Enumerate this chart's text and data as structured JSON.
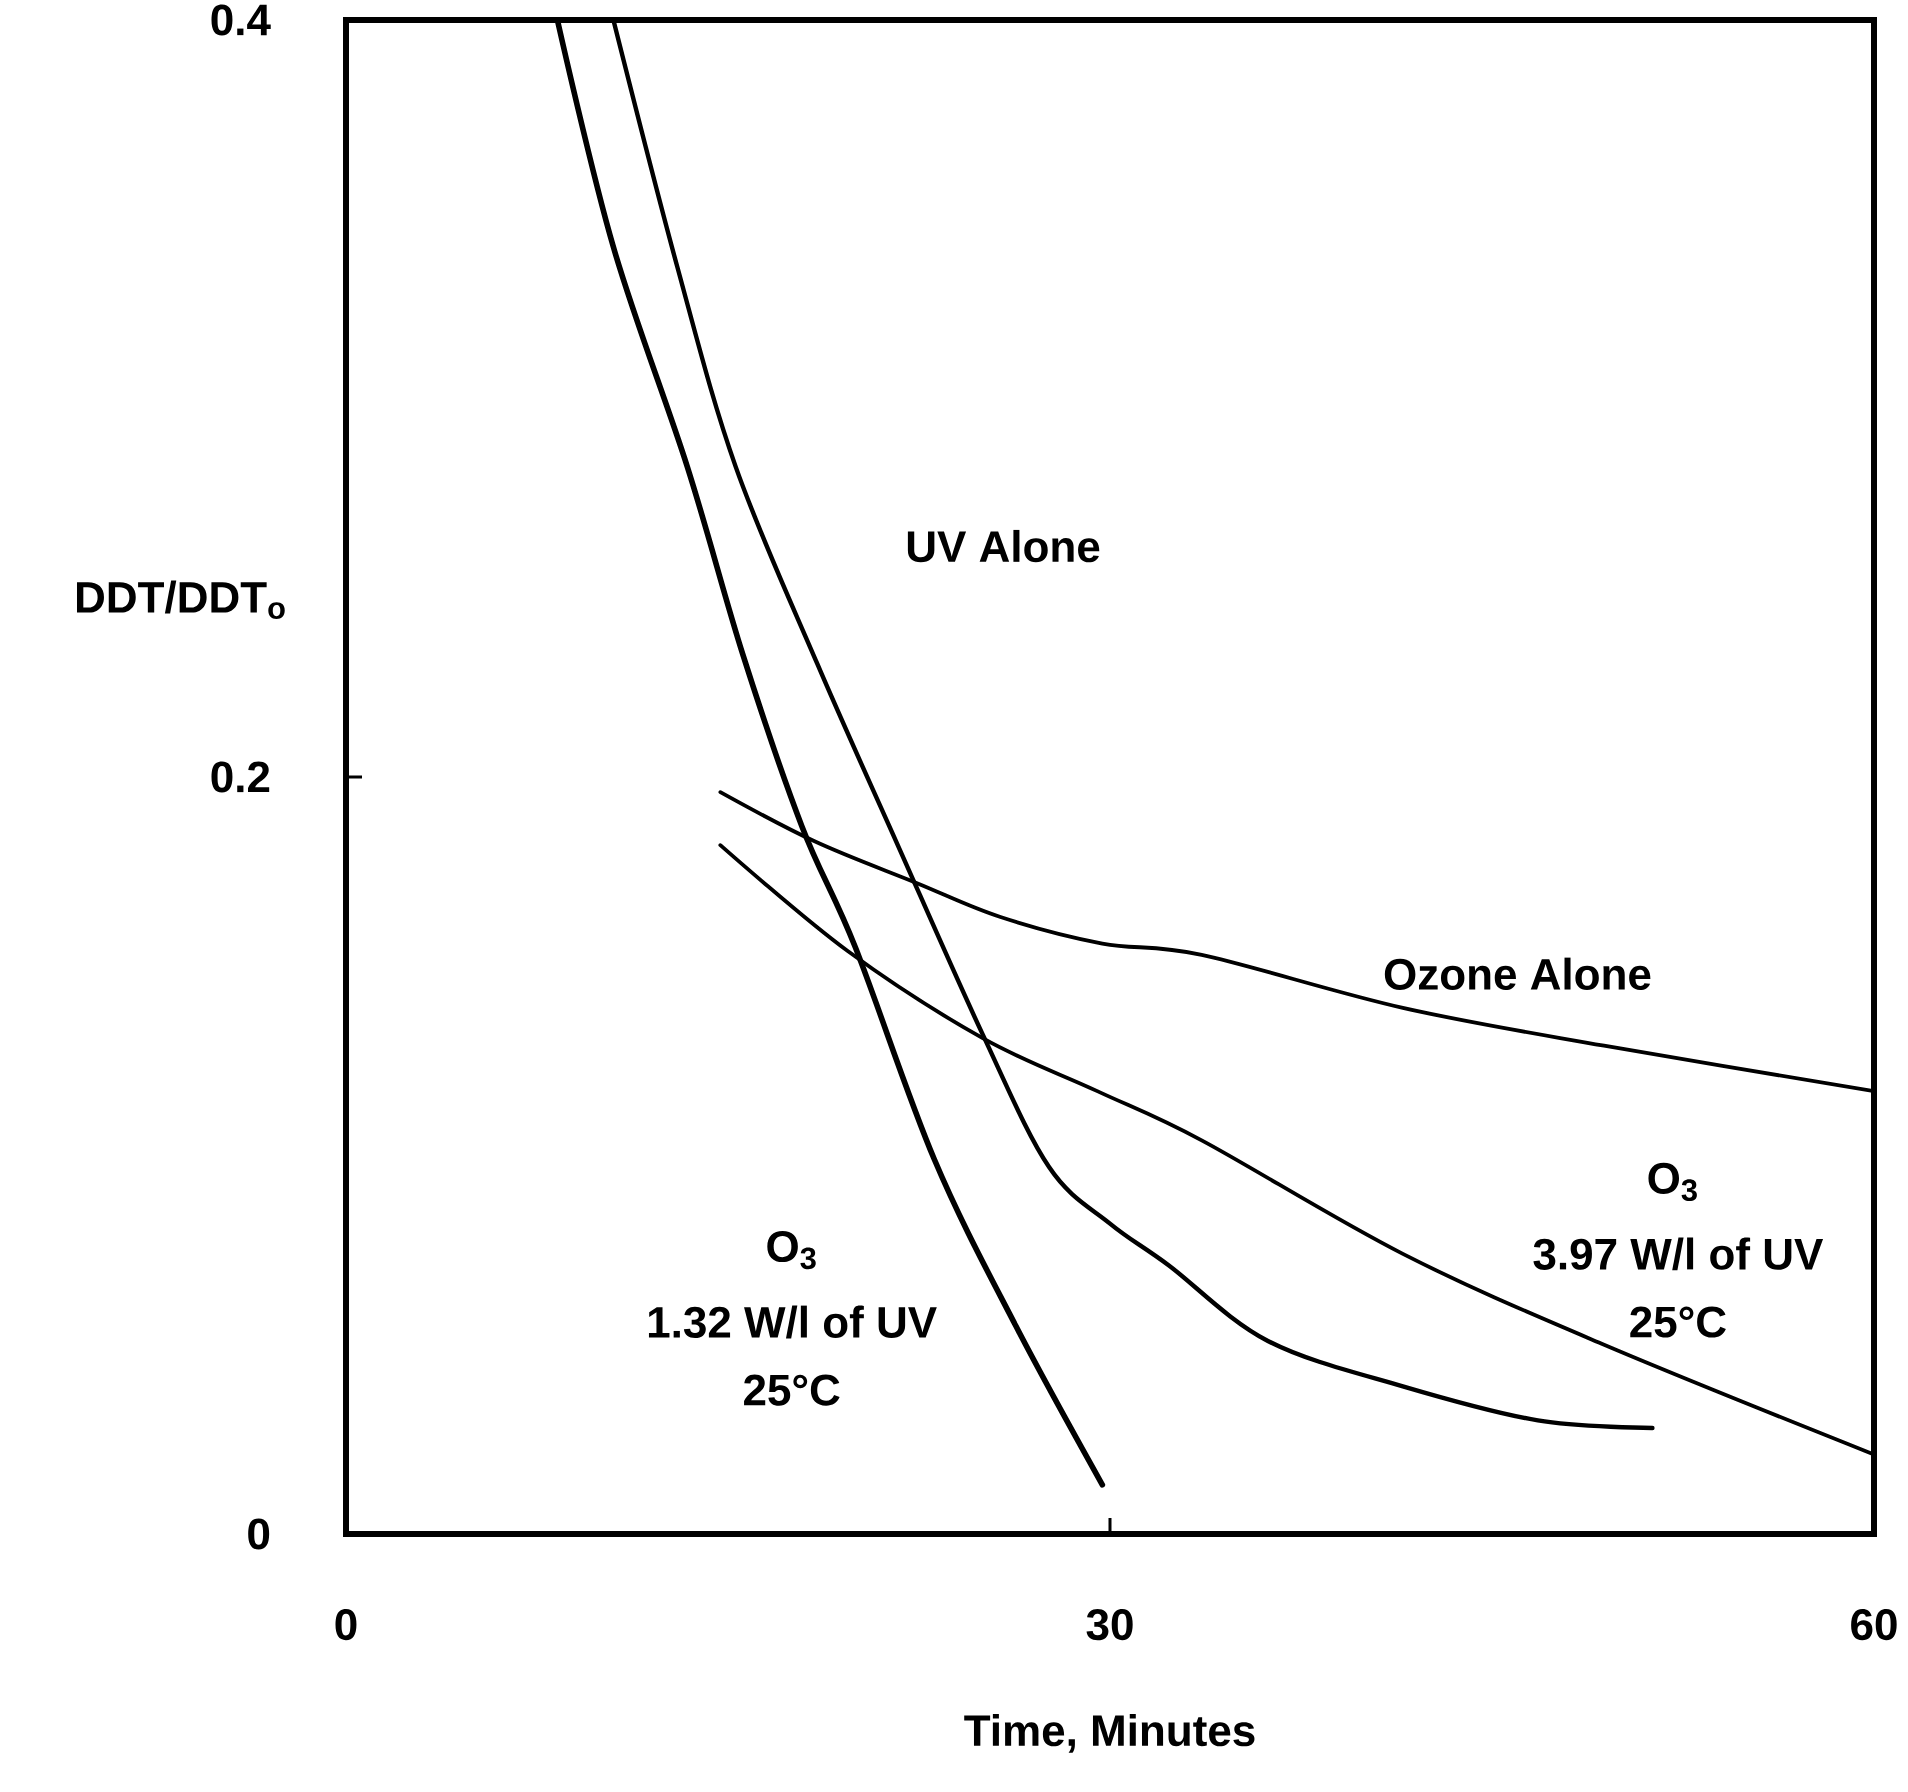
{
  "chart_data": {
    "type": "line",
    "xlabel": "Time, Minutes",
    "ylabel": "DDT/DDT$_{o}$",
    "xlim": [
      0,
      60
    ],
    "ylim": [
      0,
      0.4
    ],
    "xticks": [
      0,
      30,
      60
    ],
    "yticks": [
      0,
      0.2,
      0.4
    ],
    "grid": false,
    "marker": "none",
    "line_style": "solid",
    "series": [
      {
        "color": "#000000",
        "x": [
          8.3,
          10.5,
          13.4,
          15.6,
          17.9,
          20.0,
          23.1,
          26.3,
          29.7
        ],
        "values": [
          0.4,
          0.34,
          0.282,
          0.232,
          0.187,
          0.155,
          0.099,
          0.055,
          0.013
        ]
      },
      {
        "name": "UV Alone",
        "color": "#000000",
        "x": [
          10.5,
          13,
          15.3,
          18.5,
          21.6,
          25.0,
          27.6,
          30,
          32.3,
          36.2,
          41.5,
          46.8,
          51.3
        ],
        "values": [
          0.4,
          0.335,
          0.282,
          0.23,
          0.183,
          0.132,
          0.097,
          0.082,
          0.071,
          0.051,
          0.039,
          0.03,
          0.028
        ]
      },
      {
        "name": "Ozone Alone",
        "color": "#000000",
        "x": [
          14.7,
          18.4,
          22.4,
          25.7,
          29.7,
          33.6,
          41.5,
          49.4,
          60
        ],
        "values": [
          0.196,
          0.183,
          0.172,
          0.163,
          0.156,
          0.153,
          0.139,
          0.129,
          0.117
        ]
      },
      {
        "color": "#000000",
        "x": [
          14.7,
          19.7,
          25.0,
          29.5,
          33.6,
          41.5,
          49.4,
          60
        ],
        "values": [
          0.182,
          0.154,
          0.131,
          0.117,
          0.104,
          0.074,
          0.05,
          0.021
        ]
      }
    ],
    "annotations": [
      "O$_{3}$",
      "1.32 W/l of UV",
      "25°C",
      "O$_{3}$",
      "3.97 W/l of UV",
      "25°C"
    ]
  }
}
